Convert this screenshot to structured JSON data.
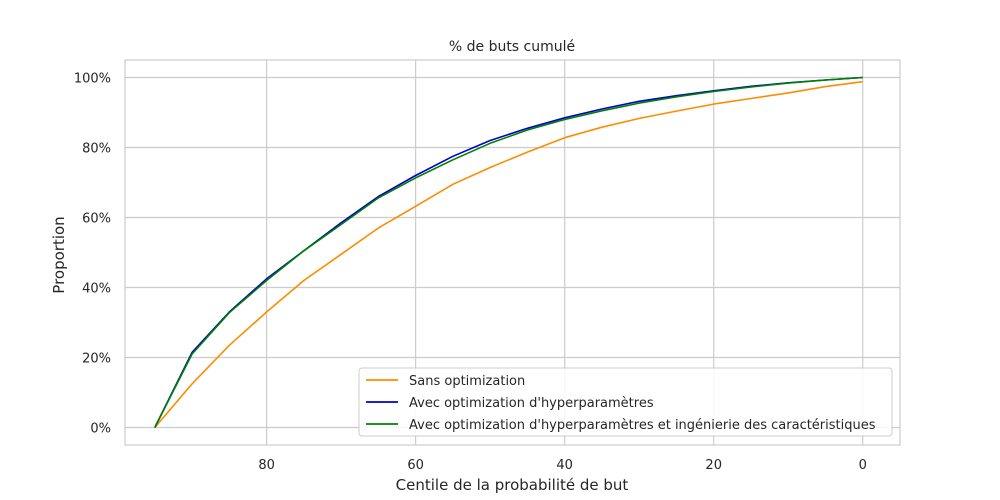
{
  "chart_data": {
    "type": "line",
    "title": "% de buts cumulé",
    "xlabel": "Centile de la probabilité de but",
    "ylabel": "Proportion",
    "xlim": [
      99,
      -5
    ],
    "ylim": [
      -0.05,
      1.05
    ],
    "x_inverted": true,
    "xticks": [
      80,
      60,
      40,
      20,
      0
    ],
    "xtick_labels": [
      "80",
      "60",
      "40",
      "20",
      "0"
    ],
    "yticks": [
      0,
      0.2,
      0.4,
      0.6,
      0.8,
      1.0
    ],
    "ytick_labels": [
      "0%",
      "20%",
      "40%",
      "60%",
      "80%",
      "100%"
    ],
    "grid": true,
    "legend_position": "lower-right",
    "x": [
      95,
      90,
      85,
      80,
      75,
      70,
      65,
      60,
      55,
      50,
      45,
      40,
      35,
      30,
      25,
      20,
      15,
      10,
      5,
      0
    ],
    "series": [
      {
        "name": "Sans optimization",
        "color": "#ff8c00",
        "values": [
          0.0,
          0.125,
          0.235,
          0.33,
          0.42,
          0.495,
          0.57,
          0.632,
          0.695,
          0.743,
          0.787,
          0.828,
          0.858,
          0.883,
          0.904,
          0.924,
          0.94,
          0.956,
          0.974,
          0.988
        ]
      },
      {
        "name": "Avec optimization d'hyperparamètres",
        "color": "#0000cd",
        "values": [
          0.0,
          0.215,
          0.33,
          0.425,
          0.505,
          0.585,
          0.66,
          0.72,
          0.775,
          0.82,
          0.855,
          0.885,
          0.91,
          0.932,
          0.948,
          0.962,
          0.975,
          0.985,
          0.993,
          1.0
        ]
      },
      {
        "name": "Avec optimization d'hyperparamètres et ingénierie des caractéristiques",
        "color": "#008000",
        "values": [
          0.0,
          0.21,
          0.328,
          0.42,
          0.505,
          0.58,
          0.656,
          0.713,
          0.765,
          0.812,
          0.85,
          0.88,
          0.905,
          0.927,
          0.945,
          0.96,
          0.973,
          0.984,
          0.993,
          1.0
        ]
      }
    ]
  }
}
